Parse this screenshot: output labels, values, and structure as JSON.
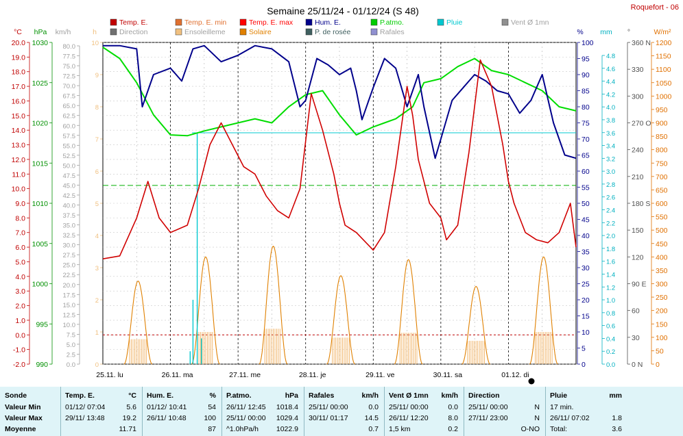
{
  "header": {
    "title": "Semaine 25/11/24 - 01/12/24 (S 48)",
    "station": "Roquefort - 06"
  },
  "legend": [
    {
      "label": "Temp. E.",
      "color": "#c00000",
      "bright": true
    },
    {
      "label": "Temp. E. min",
      "color": "#e07030",
      "bright": true
    },
    {
      "label": "Temp. E. max",
      "color": "#ff0000",
      "bright": true
    },
    {
      "label": "Hum. E.",
      "color": "#00008b",
      "bright": true
    },
    {
      "label": "P.atmo.",
      "color": "#00cc00",
      "bright": true
    },
    {
      "label": "Pluie",
      "color": "#00c8d0",
      "bright": true
    },
    {
      "label": "Vent Ø 1mn",
      "color": "#909090",
      "bright": false
    },
    {
      "label": "Direction",
      "color": "#707070",
      "bright": false
    },
    {
      "label": "Ensoleilleme",
      "color": "#f0c080",
      "bright": false
    },
    {
      "label": "Solaire",
      "color": "#e08000",
      "bright": true
    },
    {
      "label": "P. de rosée",
      "color": "#406060",
      "bright": true
    },
    {
      "label": "Rafales",
      "color": "#9090d0",
      "bright": false
    }
  ],
  "axes": {
    "temp": {
      "unit": "°C",
      "color": "#c00000",
      "ticks": [
        "20.0",
        "19.0",
        "18.0",
        "17.0",
        "16.0",
        "15.0",
        "14.0",
        "13.0",
        "12.0",
        "11.0",
        "10.0",
        "9.0",
        "8.0",
        "7.0",
        "6.0",
        "5.0",
        "4.0",
        "3.0",
        "2.0",
        "1.0",
        "0.0",
        "-1.0",
        "-2.0"
      ]
    },
    "press": {
      "unit": "hPa",
      "color": "#009000",
      "ticks": [
        "1030",
        "1025",
        "1020",
        "1015",
        "1010",
        "1005",
        "1000",
        "995",
        "990"
      ]
    },
    "wind": {
      "unit": "km/h",
      "color": "#a0a0a0",
      "ticks": [
        "80.0",
        "77.5",
        "75.0",
        "72.5",
        "70.0",
        "67.5",
        "65.0",
        "62.5",
        "60.0",
        "57.5",
        "55.0",
        "52.5",
        "50.0",
        "47.5",
        "45.0",
        "42.5",
        "40.0",
        "37.5",
        "35.0",
        "32.5",
        "30.0",
        "27.5",
        "25.0",
        "22.5",
        "20.0",
        "17.5",
        "15.0",
        "12.5",
        "10.0",
        "7.5",
        "5.0",
        "2.5",
        "0.0"
      ]
    },
    "sun": {
      "unit": "h",
      "color": "#f0c080",
      "ticks": [
        "10",
        "9",
        "8",
        "7",
        "6",
        "5",
        "4",
        "3",
        "2",
        "1",
        "0"
      ]
    },
    "hum": {
      "unit": "%",
      "color": "#00008b",
      "ticks": [
        "100",
        "95",
        "90",
        "85",
        "80",
        "75",
        "70",
        "65",
        "60",
        "55",
        "50",
        "45",
        "40",
        "35",
        "30",
        "25",
        "20",
        "15",
        "10",
        "5",
        "0"
      ]
    },
    "rain": {
      "unit": "mm",
      "color": "#00b0c0",
      "ticks": [
        "4.8",
        "4.6",
        "4.4",
        "4.2",
        "4.0",
        "3.8",
        "3.6",
        "3.4",
        "3.2",
        "3.0",
        "2.8",
        "2.6",
        "2.4",
        "2.2",
        "2.0",
        "1.8",
        "1.6",
        "1.4",
        "1.2",
        "1.0",
        "0.8",
        "0.6",
        "0.4",
        "0.2",
        "0.0"
      ]
    },
    "dir": {
      "unit": "°",
      "color": "#505050",
      "ticks": [
        "360 N",
        "330",
        "300",
        "270 O",
        "240",
        "210",
        "180 S",
        "150",
        "120",
        "90 E",
        "60",
        "30",
        "0 N"
      ]
    },
    "solar": {
      "unit": "W/m²",
      "color": "#e07000",
      "ticks": [
        "1200",
        "1150",
        "1100",
        "1050",
        "1000",
        "950",
        "900",
        "850",
        "800",
        "750",
        "700",
        "650",
        "600",
        "550",
        "500",
        "450",
        "400",
        "350",
        "300",
        "250",
        "200",
        "150",
        "100",
        "50",
        "0"
      ]
    },
    "days": [
      "25.11. lu",
      "26.11. ma",
      "27.11. me",
      "28.11. je",
      "29.11. ve",
      "30.11. sa",
      "01.12. di"
    ]
  },
  "chart_data": {
    "type": "line",
    "title": "Semaine 25/11/24 - 01/12/24 (S 48)",
    "x_unit": "hours since 25.11. 00:00",
    "temp_ylim": [
      -2,
      20
    ],
    "hum_ylim": [
      0,
      100
    ],
    "press_ylim": [
      990,
      1030
    ],
    "solar_ylim": [
      0,
      1200
    ],
    "series": [
      {
        "name": "Temp. E.",
        "unit": "°C",
        "x": [
          0,
          6,
          12,
          16,
          20,
          24,
          30,
          34,
          38,
          42,
          46,
          50,
          54,
          58,
          62,
          66,
          70,
          74,
          78,
          82,
          84,
          86,
          90,
          96,
          100,
          104,
          108,
          110,
          112,
          116,
          120,
          122,
          126,
          130,
          134,
          138,
          142,
          144,
          146,
          150,
          154,
          158,
          162,
          164,
          166,
          168
        ],
        "y": [
          5.2,
          5.4,
          8.0,
          10.5,
          8.0,
          7.0,
          7.5,
          10.0,
          13.0,
          14.5,
          13.0,
          11.5,
          11.0,
          9.5,
          8.5,
          8.0,
          10.0,
          16.5,
          14.0,
          11.0,
          9.0,
          7.5,
          7.0,
          5.8,
          7.0,
          11.5,
          17.0,
          15.0,
          12.0,
          9.0,
          8.0,
          6.5,
          7.5,
          12.5,
          18.8,
          17.0,
          13.0,
          10.5,
          9.0,
          7.0,
          6.5,
          6.3,
          7.0,
          8.0,
          9.0,
          6.0
        ]
      },
      {
        "name": "Hum. E.",
        "unit": "%",
        "x": [
          0,
          6,
          12,
          14,
          18,
          24,
          28,
          32,
          36,
          42,
          48,
          54,
          60,
          66,
          70,
          72,
          76,
          80,
          84,
          88,
          90,
          92,
          96,
          100,
          104,
          108,
          112,
          114,
          118,
          120,
          124,
          128,
          132,
          136,
          140,
          144,
          148,
          152,
          156,
          160,
          164,
          168
        ],
        "y": [
          99,
          99,
          98,
          80,
          90,
          92,
          88,
          98,
          99,
          94,
          96,
          99,
          98,
          94,
          80,
          82,
          95,
          93,
          90,
          92,
          85,
          76,
          86,
          95,
          92,
          80,
          90,
          80,
          64,
          70,
          82,
          86,
          90,
          88,
          85,
          84,
          78,
          82,
          90,
          75,
          65,
          64
        ]
      },
      {
        "name": "P.atmo.",
        "unit": "hPa",
        "x": [
          0,
          6,
          12,
          18,
          24,
          30,
          36,
          42,
          48,
          54,
          60,
          66,
          72,
          78,
          84,
          90,
          96,
          100,
          104,
          110,
          114,
          120,
          126,
          132,
          138,
          144,
          150,
          156,
          162,
          168
        ],
        "y": [
          1029.4,
          1028.0,
          1025.0,
          1021.0,
          1018.5,
          1018.4,
          1019.0,
          1019.5,
          1020.0,
          1020.5,
          1020.0,
          1022.0,
          1023.5,
          1024.0,
          1021.0,
          1018.5,
          1019.5,
          1020.0,
          1020.5,
          1022.0,
          1025.0,
          1025.5,
          1027.0,
          1028.0,
          1026.5,
          1026.0,
          1025.0,
          1024.0,
          1022.0,
          1021.5
        ]
      },
      {
        "name": "Solaire",
        "unit": "W/m²",
        "peaks_x": [
          12.5,
          36.5,
          60.5,
          84.5,
          108.5,
          132.5,
          156.5
        ],
        "peaks_y": [
          310,
          400,
          440,
          330,
          390,
          290,
          400
        ]
      }
    ]
  },
  "stats": {
    "columns": [
      {
        "header": "Sonde",
        "rows": [
          "Valeur Min",
          "Valeur Max",
          "Moyenne"
        ]
      },
      {
        "header": "Temp. E.",
        "unit": "°C",
        "rows": [
          [
            "01/12/ 07:04",
            "5.6"
          ],
          [
            "29/11/ 13:48",
            "19.2"
          ],
          [
            "",
            "11.71"
          ]
        ]
      },
      {
        "header": "Hum. E.",
        "unit": "%",
        "rows": [
          [
            "01/12/ 10:41",
            "54"
          ],
          [
            "26/11/ 10:48",
            "100"
          ],
          [
            "",
            "87"
          ]
        ]
      },
      {
        "header": "P.atmo.",
        "unit": "hPa",
        "rows": [
          [
            "26/11/ 12:45",
            "1018.4"
          ],
          [
            "25/11/ 00:00",
            "1029.4"
          ],
          [
            "^1.0hPa/h",
            "1022.9"
          ]
        ]
      },
      {
        "header": "Rafales",
        "unit": "km/h",
        "rows": [
          [
            "25/11/ 00:00",
            "0.0"
          ],
          [
            "30/11/ 01:17",
            "14.5"
          ],
          [
            "",
            "0.7"
          ]
        ]
      },
      {
        "header": "Vent Ø 1mn",
        "unit": "km/h",
        "rows": [
          [
            "25/11/ 00:00",
            "0.0"
          ],
          [
            "26/11/ 12:20",
            "8.0"
          ],
          [
            "1,5 km",
            "0.2"
          ]
        ]
      },
      {
        "header": "Direction",
        "unit": "",
        "rows": [
          [
            "25/11/ 00:00",
            "N"
          ],
          [
            "27/11/ 23:00",
            "N"
          ],
          [
            "",
            "O-NO"
          ]
        ]
      },
      {
        "header": "Pluie",
        "unit": "mm",
        "rows": [
          [
            "17 min.",
            ""
          ],
          [
            "26/11/ 07:02",
            "1.8"
          ],
          [
            "Total:",
            "3.6"
          ]
        ]
      }
    ]
  }
}
